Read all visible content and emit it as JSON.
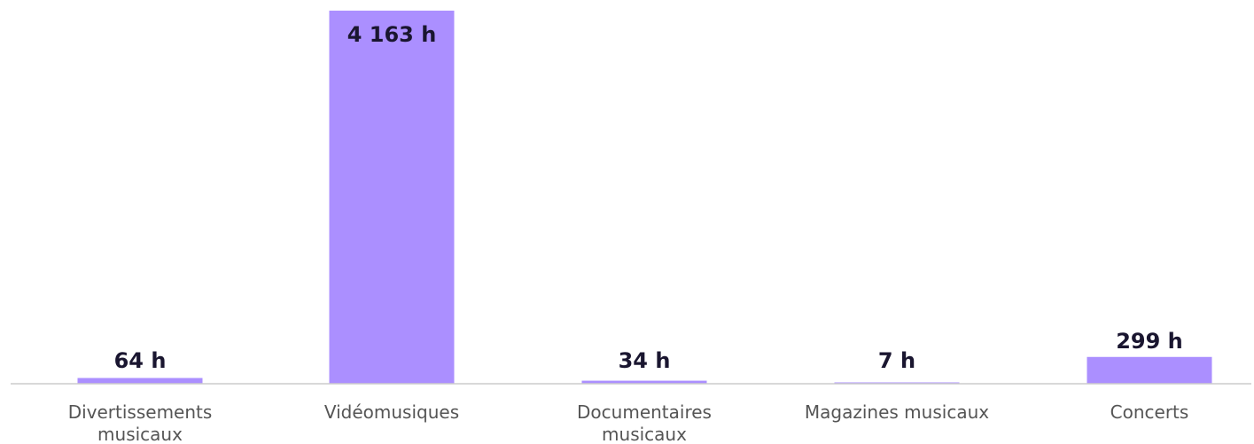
{
  "chart_data": {
    "type": "bar",
    "categories": [
      "Divertissements musicaux",
      "Vidéomusiques",
      "Documentaires musicaux",
      "Magazines musicaux",
      "Concerts"
    ],
    "category_lines": [
      [
        "Divertissements",
        "musicaux"
      ],
      [
        "Vidéomusiques"
      ],
      [
        "Documentaires",
        "musicaux"
      ],
      [
        "Magazines musicaux"
      ],
      [
        "Concerts"
      ]
    ],
    "values": [
      64,
      4163,
      34,
      7,
      299
    ],
    "value_labels": [
      "64 h",
      "4 163 h",
      "34 h",
      "7 h",
      "299 h"
    ],
    "ylim": [
      0,
      4163
    ],
    "grid": false,
    "legend": "none",
    "colors": {
      "bar": "#ab8fff",
      "value_text": "#1a1630",
      "category_text": "#555555",
      "axis": "#cccccc"
    }
  }
}
